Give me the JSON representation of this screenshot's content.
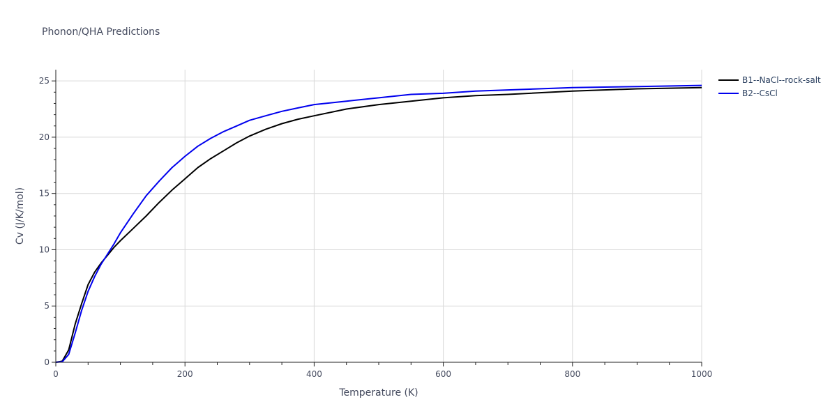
{
  "chart_data": {
    "type": "line",
    "title": "Phonon/QHA Predictions",
    "xlabel": "Temperature (K)",
    "ylabel": "Cv (J/K/mol)",
    "xlim": [
      0,
      1000
    ],
    "ylim": [
      0,
      26
    ],
    "x_ticks": [
      0,
      200,
      400,
      600,
      800,
      1000
    ],
    "y_ticks": [
      0,
      5,
      10,
      15,
      20,
      25
    ],
    "grid": true,
    "legend_position": "top-right",
    "series": [
      {
        "name": "B1--NaCl--rock-salt",
        "color": "#000000",
        "x": [
          0,
          10,
          20,
          30,
          40,
          50,
          60,
          70,
          80,
          90,
          100,
          120,
          140,
          160,
          180,
          200,
          220,
          240,
          260,
          280,
          300,
          325,
          350,
          375,
          400,
          450,
          500,
          550,
          600,
          650,
          700,
          800,
          900,
          1000
        ],
        "y": [
          0,
          0.1,
          1.1,
          3.4,
          5.2,
          6.9,
          8.0,
          8.8,
          9.5,
          10.2,
          10.8,
          11.9,
          13.0,
          14.2,
          15.3,
          16.3,
          17.3,
          18.1,
          18.8,
          19.5,
          20.1,
          20.7,
          21.2,
          21.6,
          21.9,
          22.5,
          22.9,
          23.2,
          23.5,
          23.7,
          23.8,
          24.1,
          24.3,
          24.4
        ]
      },
      {
        "name": "B2--CsCl",
        "color": "#0000ee",
        "x": [
          0,
          10,
          20,
          30,
          40,
          50,
          60,
          70,
          80,
          90,
          100,
          120,
          140,
          160,
          180,
          200,
          220,
          240,
          260,
          280,
          300,
          325,
          350,
          375,
          400,
          450,
          500,
          550,
          600,
          650,
          700,
          800,
          900,
          1000
        ],
        "y": [
          0,
          0.05,
          0.7,
          2.6,
          4.6,
          6.3,
          7.6,
          8.7,
          9.6,
          10.5,
          11.5,
          13.2,
          14.8,
          16.1,
          17.3,
          18.3,
          19.2,
          19.9,
          20.5,
          21.0,
          21.5,
          21.9,
          22.3,
          22.6,
          22.9,
          23.2,
          23.5,
          23.8,
          23.9,
          24.1,
          24.2,
          24.4,
          24.5,
          24.6
        ]
      }
    ]
  }
}
